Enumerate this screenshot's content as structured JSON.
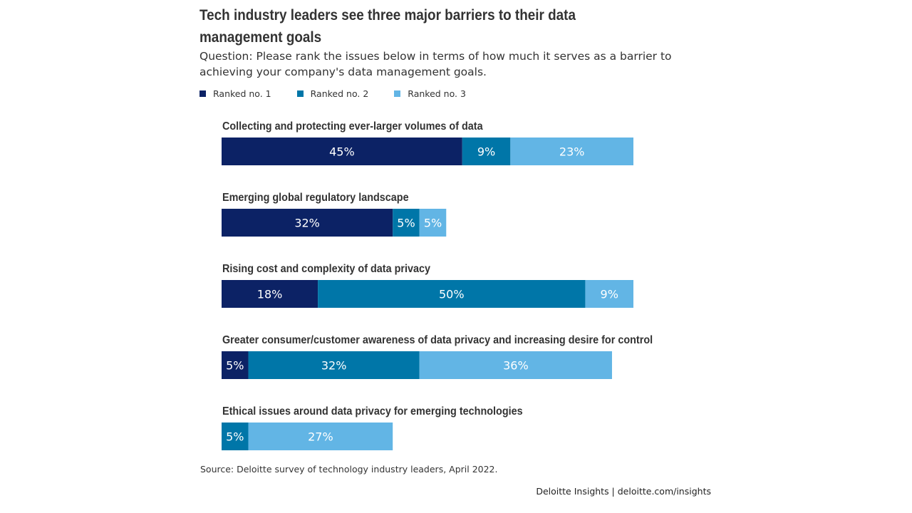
{
  "chart_data": {
    "type": "bar",
    "orientation": "horizontal-stacked",
    "title": "Tech industry leaders see three major barriers to their data management goals",
    "subtitle": "Question: Please rank the issues below in terms of how much it serves as a barrier to achieving your company's data management goals.",
    "categories": [
      "Collecting and protecting ever-larger volumes of data",
      "Emerging global regulatory landscape",
      "Rising cost and complexity of data privacy",
      "Greater consumer/customer awareness of data privacy and increasing desire for control",
      "Ethical issues around data privacy for emerging technologies"
    ],
    "series": [
      {
        "name": "Ranked no. 1",
        "color": "#0c2265",
        "values": [
          45,
          32,
          18,
          5,
          0
        ]
      },
      {
        "name": "Ranked no. 2",
        "color": "#0076a8",
        "values": [
          9,
          5,
          50,
          32,
          5
        ]
      },
      {
        "name": "Ranked no. 3",
        "color": "#62b5e5",
        "values": [
          23,
          5,
          9,
          36,
          27
        ]
      }
    ],
    "value_suffix": "%",
    "xlim": [
      0,
      77
    ],
    "legend_position": "top-left",
    "grid": false
  },
  "footer": {
    "source": "Source: Deloitte survey of technology industry leaders, April 2022.",
    "credit": "Deloitte Insights | deloitte.com/insights"
  }
}
